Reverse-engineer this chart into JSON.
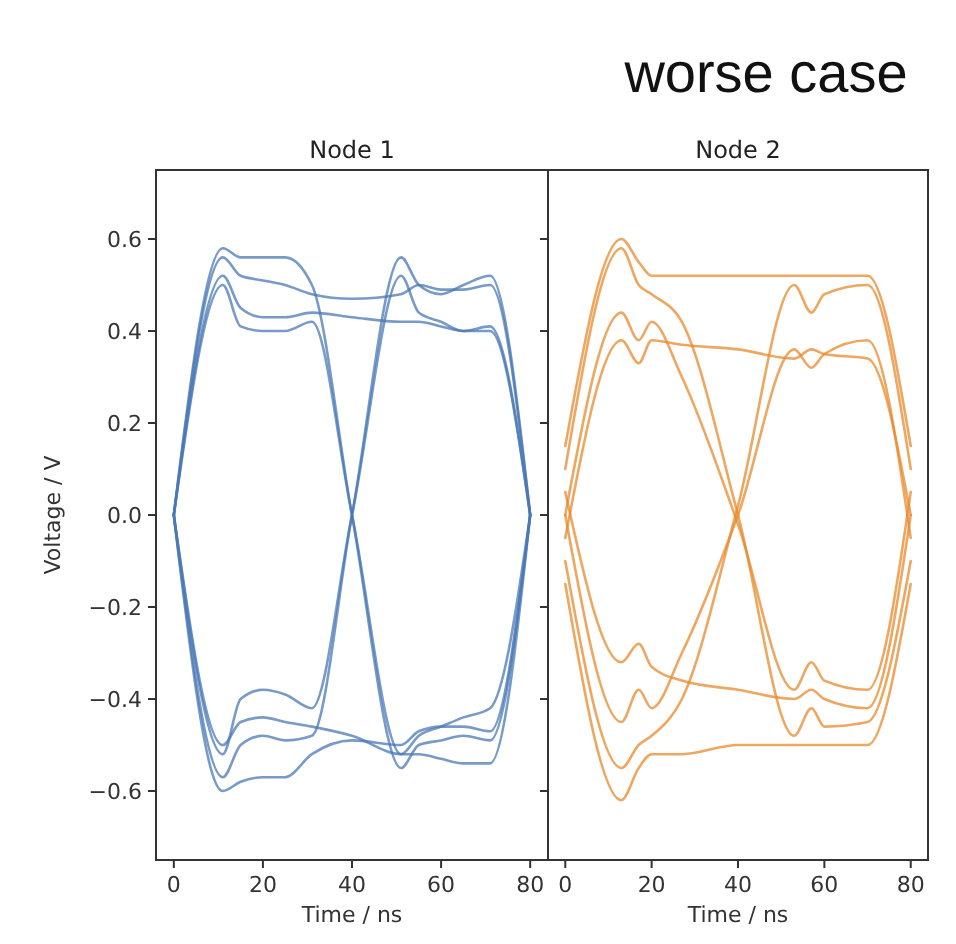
{
  "chart_data": [
    {
      "type": "line",
      "title": "Node 1",
      "xlabel": "Time / ns",
      "ylabel": "Voltage / V",
      "annotations": [
        "worse case"
      ],
      "x": [
        0,
        11,
        15,
        20,
        25,
        31,
        40,
        51,
        55,
        60,
        65,
        71,
        80
      ],
      "xlim": [
        -4,
        84
      ],
      "ylim": [
        -0.75,
        0.75
      ],
      "xticks": [
        0,
        20,
        40,
        60,
        80
      ],
      "yticks": [
        {
          "value": -0.6,
          "label": "−0.6"
        },
        {
          "value": -0.4,
          "label": "−0.4"
        },
        {
          "value": -0.2,
          "label": "−0.2"
        },
        {
          "value": 0,
          "label": "0.0"
        },
        0.2,
        0.4,
        0.6
      ],
      "series": [
        {
          "color": "#4a78b5",
          "values": [
            0,
            0.56,
            0.52,
            0.51,
            0.5,
            0.48,
            0.47,
            0.48,
            0.5,
            0.49,
            0.49,
            0.5,
            0
          ]
        },
        {
          "color": "#4a78b5",
          "values": [
            0,
            0.52,
            0.45,
            0.43,
            0.43,
            0.44,
            0.43,
            0.42,
            0.42,
            0.41,
            0.4,
            0.41,
            0
          ]
        },
        {
          "color": "#4a78b5",
          "values": [
            0,
            0.58,
            0.56,
            0.56,
            0.56,
            0.5,
            0,
            -0.55,
            -0.5,
            -0.49,
            -0.48,
            -0.49,
            0
          ]
        },
        {
          "color": "#4a78b5",
          "values": [
            0,
            0.5,
            0.41,
            0.4,
            0.4,
            0.42,
            0,
            -0.52,
            -0.52,
            -0.53,
            -0.54,
            -0.54,
            0
          ]
        },
        {
          "color": "#4a78b5",
          "values": [
            0,
            -0.57,
            -0.5,
            -0.48,
            -0.49,
            -0.48,
            0,
            0.56,
            0.5,
            0.48,
            0.5,
            0.52,
            0
          ]
        },
        {
          "color": "#4a78b5",
          "values": [
            0,
            -0.52,
            -0.4,
            -0.38,
            -0.39,
            -0.42,
            0,
            0.52,
            0.44,
            0.42,
            0.4,
            0.4,
            0
          ]
        },
        {
          "color": "#4a78b5",
          "values": [
            0,
            -0.6,
            -0.58,
            -0.57,
            -0.57,
            -0.52,
            -0.49,
            -0.5,
            -0.47,
            -0.46,
            -0.46,
            -0.47,
            0
          ]
        },
        {
          "color": "#4a78b5",
          "values": [
            0,
            -0.5,
            -0.45,
            -0.44,
            -0.45,
            -0.46,
            -0.48,
            -0.52,
            -0.48,
            -0.46,
            -0.44,
            -0.42,
            0
          ]
        }
      ]
    },
    {
      "type": "line",
      "title": "Node 2",
      "xlabel": "Time / ns",
      "tick_labels": "x",
      "x": [
        0,
        13,
        17,
        20,
        27,
        40,
        53,
        57,
        60,
        70,
        80
      ],
      "xlim": [
        -4,
        84
      ],
      "ylim": [
        -0.75,
        0.75
      ],
      "xticks": [
        0,
        20,
        40,
        60,
        80
      ],
      "yticks": [
        {
          "value": -0.6,
          "label": null
        },
        {
          "value": -0.4,
          "label": null
        },
        {
          "value": -0.2,
          "label": null
        },
        {
          "value": 0,
          "label": null
        },
        {
          "value": 0.2,
          "label": null
        },
        {
          "value": 0.4,
          "label": null
        },
        {
          "value": 0.6,
          "label": null
        }
      ],
      "series": [
        {
          "color": "#e8892b",
          "values": [
            0.15,
            0.6,
            0.55,
            0.52,
            0.52,
            0.52,
            0.52,
            0.52,
            0.52,
            0.52,
            0.15
          ]
        },
        {
          "color": "#e8892b",
          "values": [
            -0.05,
            0.38,
            0.33,
            0.38,
            0.37,
            0.36,
            0.34,
            0.36,
            0.35,
            0.34,
            0
          ]
        },
        {
          "color": "#e8892b",
          "values": [
            0.1,
            0.58,
            0.5,
            0.48,
            0.42,
            0,
            -0.48,
            -0.42,
            -0.46,
            -0.45,
            -0.1
          ]
        },
        {
          "color": "#e8892b",
          "values": [
            0,
            0.44,
            0.38,
            0.42,
            0.3,
            -0.02,
            -0.38,
            -0.32,
            -0.36,
            -0.38,
            0.05
          ]
        },
        {
          "color": "#e8892b",
          "values": [
            -0.1,
            -0.55,
            -0.5,
            -0.48,
            -0.4,
            0.02,
            0.5,
            0.44,
            0.48,
            0.5,
            0.1
          ]
        },
        {
          "color": "#e8892b",
          "values": [
            0,
            -0.45,
            -0.38,
            -0.42,
            -0.3,
            0,
            0.36,
            0.32,
            0.35,
            0.38,
            -0.05
          ]
        },
        {
          "color": "#e8892b",
          "values": [
            -0.15,
            -0.62,
            -0.55,
            -0.52,
            -0.52,
            -0.5,
            -0.5,
            -0.5,
            -0.5,
            -0.5,
            -0.15
          ]
        },
        {
          "color": "#e8892b",
          "values": [
            0.05,
            -0.32,
            -0.28,
            -0.33,
            -0.36,
            -0.38,
            -0.4,
            -0.38,
            -0.4,
            -0.42,
            0
          ]
        }
      ]
    }
  ]
}
